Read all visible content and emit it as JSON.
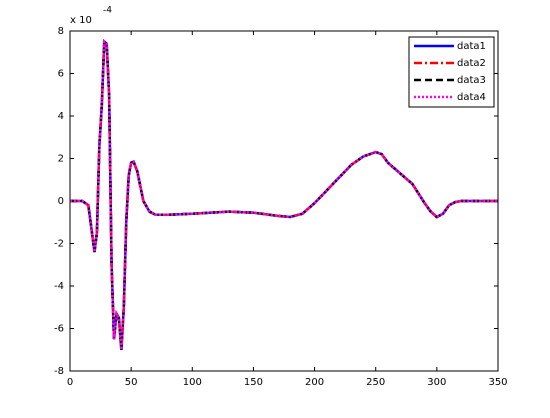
{
  "chart_data": {
    "type": "line",
    "y_exponent_base": "x 10",
    "y_exponent": "-4",
    "x": [
      0,
      10,
      15,
      18,
      20,
      22,
      24,
      26,
      28,
      30,
      32,
      34,
      36,
      38,
      40,
      42,
      44,
      46,
      48,
      50,
      52,
      55,
      60,
      65,
      70,
      80,
      100,
      130,
      150,
      170,
      180,
      190,
      200,
      210,
      220,
      230,
      240,
      250,
      255,
      260,
      270,
      280,
      290,
      295,
      300,
      305,
      310,
      315,
      320,
      350
    ],
    "series": [
      {
        "name": "data1",
        "color": "#0000ff",
        "dash": "solid",
        "values": [
          0,
          0,
          -0.2,
          -1.5,
          -2.4,
          -1.5,
          2.6,
          4.5,
          7.5,
          7.4,
          5,
          -3,
          -6.5,
          -5.3,
          -5.5,
          -7.0,
          -5,
          -1,
          1.2,
          1.8,
          1.85,
          1.4,
          0,
          -0.5,
          -0.65,
          -0.65,
          -0.6,
          -0.5,
          -0.55,
          -0.7,
          -0.75,
          -0.6,
          -0.1,
          0.5,
          1.1,
          1.7,
          2.1,
          2.3,
          2.2,
          1.8,
          1.3,
          0.8,
          -0.1,
          -0.5,
          -0.75,
          -0.6,
          -0.2,
          -0.05,
          0,
          0
        ]
      },
      {
        "name": "data2",
        "color": "#ff0000",
        "dash": "dashdot",
        "values": [
          0,
          0,
          -0.2,
          -1.5,
          -2.4,
          -1.5,
          2.6,
          4.5,
          7.5,
          7.4,
          5,
          -3,
          -6.5,
          -5.3,
          -5.5,
          -7.0,
          -5,
          -1,
          1.2,
          1.8,
          1.85,
          1.4,
          0,
          -0.5,
          -0.65,
          -0.65,
          -0.6,
          -0.5,
          -0.55,
          -0.7,
          -0.75,
          -0.6,
          -0.1,
          0.5,
          1.1,
          1.7,
          2.1,
          2.3,
          2.2,
          1.8,
          1.3,
          0.8,
          -0.1,
          -0.5,
          -0.75,
          -0.6,
          -0.2,
          -0.05,
          0,
          0
        ]
      },
      {
        "name": "data3",
        "color": "#000000",
        "dash": "dashed",
        "values": [
          0,
          0,
          -0.2,
          -1.5,
          -2.4,
          -1.5,
          2.6,
          4.5,
          7.5,
          7.4,
          5,
          -3,
          -6.5,
          -5.3,
          -5.5,
          -7.0,
          -5,
          -1,
          1.2,
          1.8,
          1.85,
          1.4,
          0,
          -0.5,
          -0.65,
          -0.65,
          -0.6,
          -0.5,
          -0.55,
          -0.7,
          -0.75,
          -0.6,
          -0.1,
          0.5,
          1.1,
          1.7,
          2.1,
          2.3,
          2.2,
          1.8,
          1.3,
          0.8,
          -0.1,
          -0.5,
          -0.75,
          -0.6,
          -0.2,
          -0.05,
          0,
          0
        ]
      },
      {
        "name": "data4",
        "color": "#ff00ff",
        "dash": "dotted",
        "values": [
          0,
          0,
          -0.2,
          -1.5,
          -2.4,
          -1.5,
          2.6,
          4.5,
          7.5,
          7.4,
          5,
          -3,
          -6.5,
          -5.3,
          -5.5,
          -7.0,
          -5,
          -1,
          1.2,
          1.8,
          1.85,
          1.4,
          0,
          -0.5,
          -0.65,
          -0.65,
          -0.6,
          -0.5,
          -0.55,
          -0.7,
          -0.75,
          -0.6,
          -0.1,
          0.5,
          1.1,
          1.7,
          2.1,
          2.3,
          2.2,
          1.8,
          1.3,
          0.8,
          -0.1,
          -0.5,
          -0.75,
          -0.6,
          -0.2,
          -0.05,
          0,
          0
        ]
      }
    ],
    "xlim": [
      0,
      350
    ],
    "xticks": [
      0,
      50,
      100,
      150,
      200,
      250,
      300,
      350
    ],
    "ylim": [
      -8,
      8
    ],
    "yticks": [
      -8,
      -6,
      -4,
      -2,
      0,
      2,
      4,
      6,
      8
    ],
    "grid": false,
    "legend": "upper right"
  }
}
